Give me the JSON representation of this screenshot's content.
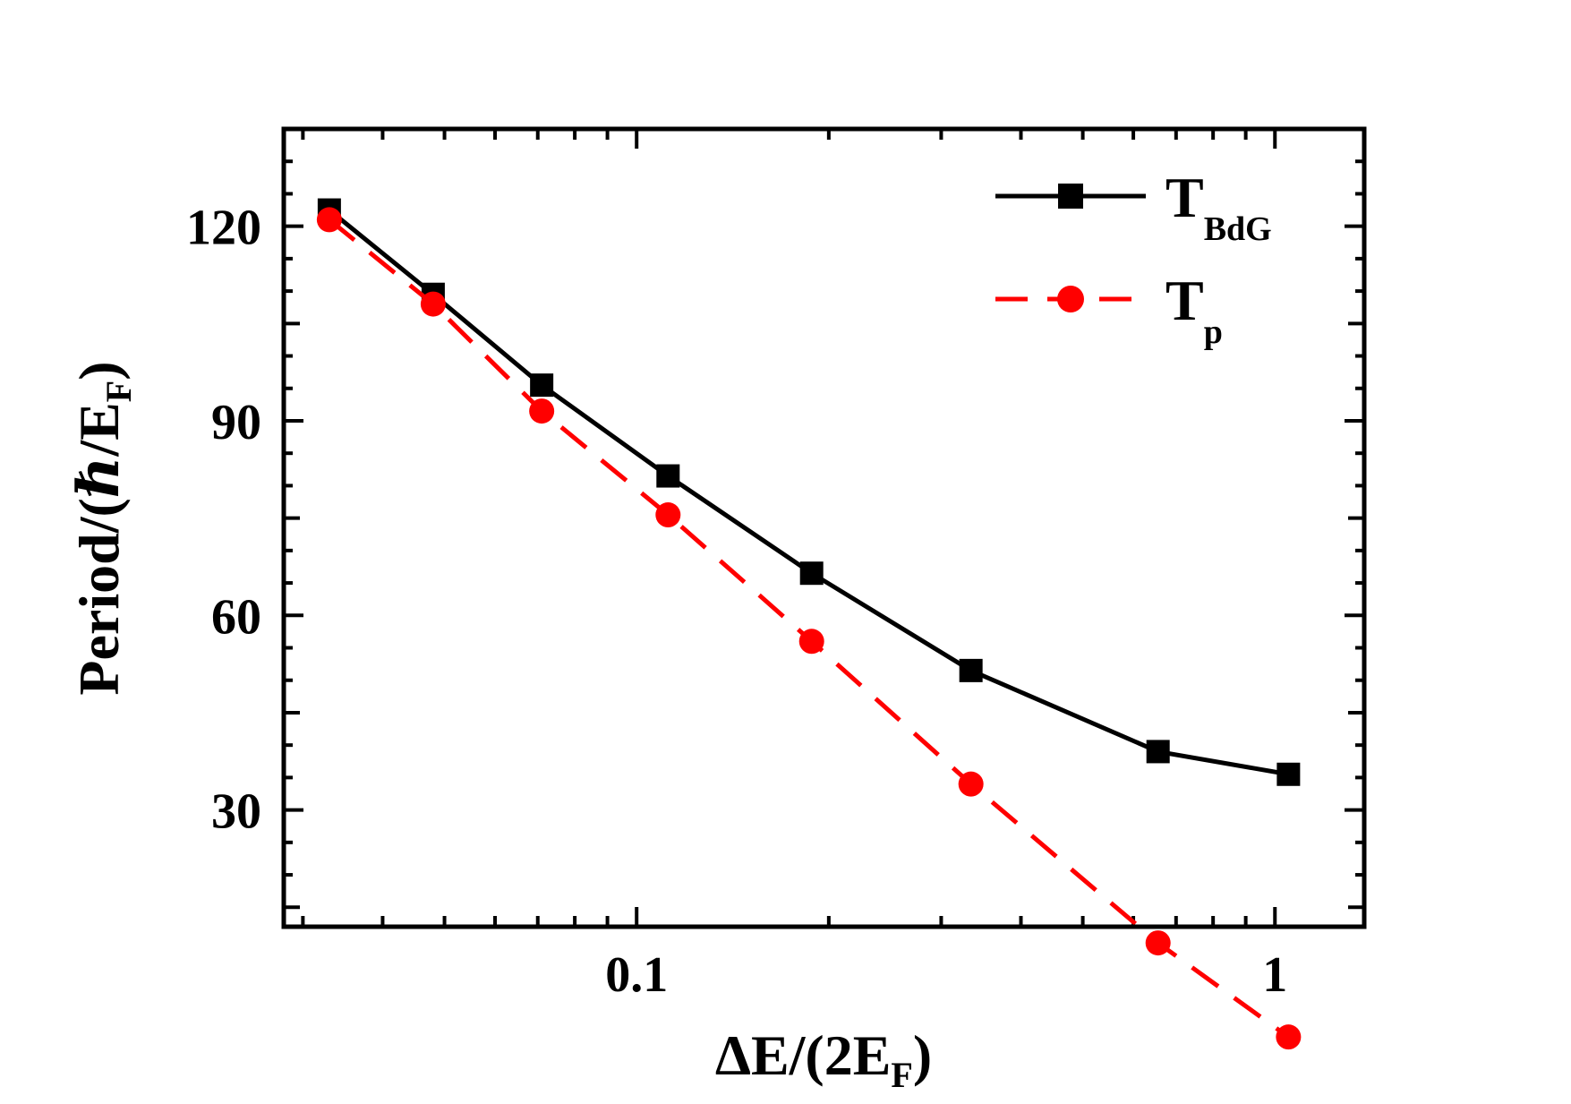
{
  "chart_data": {
    "type": "line",
    "xscale": "log",
    "xlim": [
      0.028,
      1.38
    ],
    "ylim": [
      12,
      135
    ],
    "xlabel": {
      "main": "ΔE/(2E",
      "sub": "F",
      "tail": ")"
    },
    "ylabel": {
      "main": "Period/(ℏ/E",
      "sub": "F",
      "tail": ")"
    },
    "x_ticks": [
      {
        "value": 0.1,
        "label": "0.1"
      },
      {
        "value": 1,
        "label": "1"
      }
    ],
    "y_ticks": [
      {
        "value": 30,
        "label": "30"
      },
      {
        "value": 60,
        "label": "60"
      },
      {
        "value": 90,
        "label": "90"
      },
      {
        "value": 120,
        "label": "120"
      }
    ],
    "series": [
      {
        "name": "T_BdG",
        "label_main": "T",
        "label_sub": "BdG",
        "color": "#000000",
        "marker": "square",
        "line": "solid",
        "x": [
          0.033,
          0.048,
          0.071,
          0.112,
          0.188,
          0.334,
          0.656,
          1.05
        ],
        "y": [
          122.5,
          109.5,
          95.5,
          81.5,
          66.5,
          51.5,
          39,
          35.5
        ]
      },
      {
        "name": "T_p",
        "label_main": "T",
        "label_sub": "p",
        "color": "#ff0000",
        "marker": "circle",
        "line": "dashed",
        "x": [
          0.033,
          0.048,
          0.071,
          0.112,
          0.188,
          0.334,
          0.656,
          1.05
        ],
        "y": [
          121,
          108,
          91.5,
          75.5,
          56,
          34,
          9.5,
          -5
        ]
      }
    ],
    "legend_position": "top-right"
  }
}
